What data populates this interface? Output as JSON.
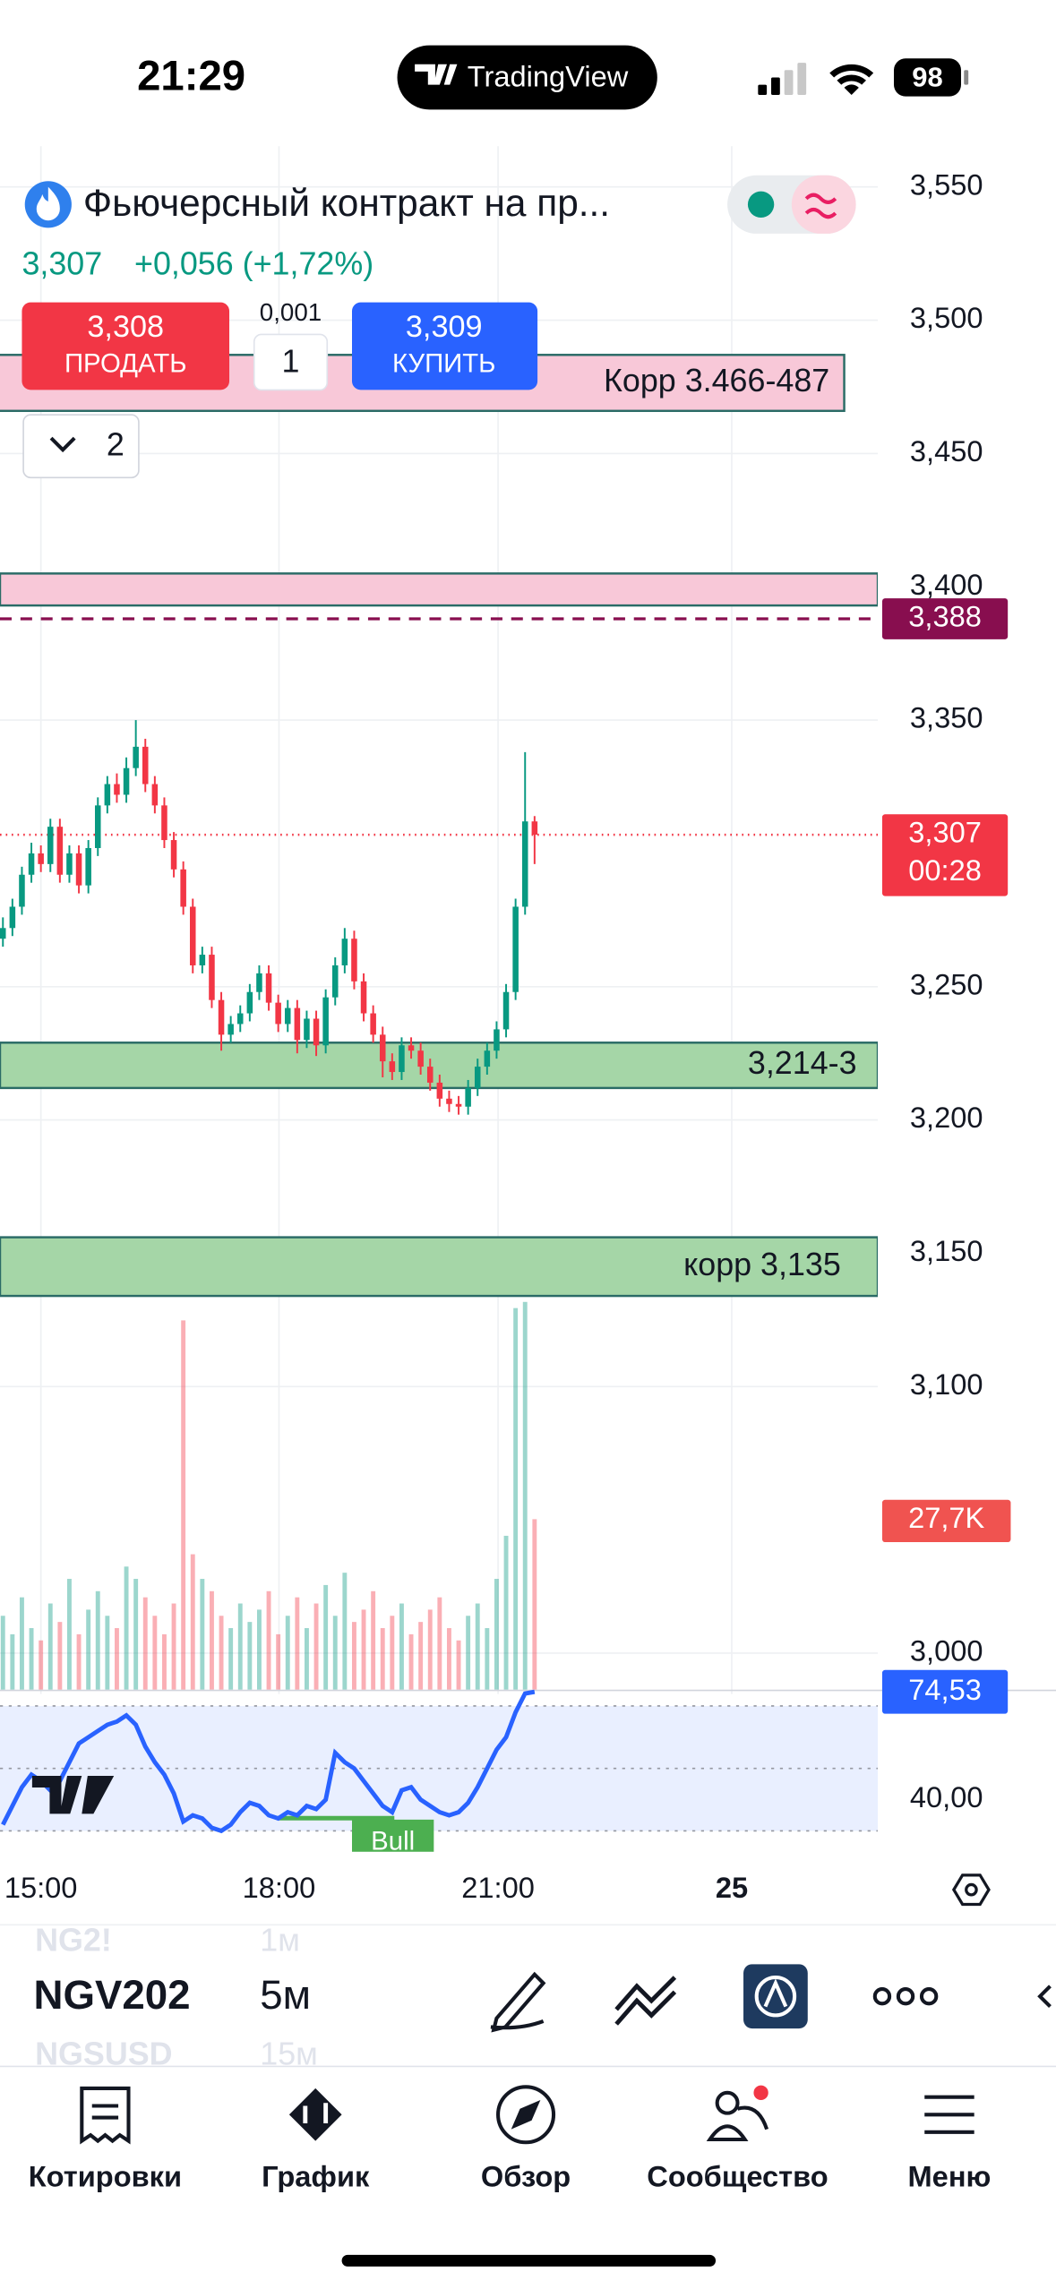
{
  "status_bar": {
    "time": "21:29",
    "app": "TradingView",
    "battery": "98"
  },
  "header": {
    "title": "Фьючерсный контракт на пр...",
    "price": "3,307",
    "change": "+0,056 (+1,72%)"
  },
  "trade": {
    "sell_price": "3,308",
    "sell_label": "ПРОДАТЬ",
    "step": "0,001",
    "quantity": "1",
    "buy_price": "3,309",
    "buy_label": "КУПИТЬ"
  },
  "layers_count": "2",
  "chart": {
    "type": "candlestick",
    "ylim": [
      3.0,
      3.55
    ],
    "yticks": [
      {
        "value": 3.55,
        "label": "3,550"
      },
      {
        "value": 3.5,
        "label": "3,500"
      },
      {
        "value": 3.45,
        "label": "3,450"
      },
      {
        "value": 3.4,
        "label": "3,400"
      },
      {
        "value": 3.35,
        "label": "3,350"
      },
      {
        "value": 3.25,
        "label": "3,250"
      },
      {
        "value": 3.2,
        "label": "3,200"
      },
      {
        "value": 3.15,
        "label": "3,150"
      },
      {
        "value": 3.1,
        "label": "3,100"
      },
      {
        "value": 3.0,
        "label": "3,000"
      }
    ],
    "up_color": "#089981",
    "down_color": "#f23645",
    "candles": [
      [
        3.268,
        3.276,
        3.265,
        3.272
      ],
      [
        3.272,
        3.283,
        3.269,
        3.28
      ],
      [
        3.28,
        3.295,
        3.277,
        3.292
      ],
      [
        3.292,
        3.304,
        3.289,
        3.3
      ],
      [
        3.3,
        3.303,
        3.293,
        3.296
      ],
      [
        3.296,
        3.313,
        3.293,
        3.31
      ],
      [
        3.31,
        3.313,
        3.289,
        3.292
      ],
      [
        3.292,
        3.303,
        3.289,
        3.3
      ],
      [
        3.3,
        3.303,
        3.285,
        3.288
      ],
      [
        3.288,
        3.305,
        3.285,
        3.302
      ],
      [
        3.302,
        3.321,
        3.299,
        3.318
      ],
      [
        3.318,
        3.329,
        3.315,
        3.326
      ],
      [
        3.326,
        3.33,
        3.319,
        3.322
      ],
      [
        3.322,
        3.336,
        3.319,
        3.332
      ],
      [
        3.332,
        3.35,
        3.329,
        3.34
      ],
      [
        3.34,
        3.343,
        3.323,
        3.326
      ],
      [
        3.326,
        3.329,
        3.315,
        3.318
      ],
      [
        3.318,
        3.321,
        3.302,
        3.305
      ],
      [
        3.305,
        3.308,
        3.291,
        3.294
      ],
      [
        3.294,
        3.297,
        3.277,
        3.28
      ],
      [
        3.28,
        3.283,
        3.255,
        3.258
      ],
      [
        3.258,
        3.265,
        3.255,
        3.262
      ],
      [
        3.262,
        3.265,
        3.242,
        3.245
      ],
      [
        3.245,
        3.248,
        3.226,
        3.232
      ],
      [
        3.232,
        3.239,
        3.229,
        3.236
      ],
      [
        3.236,
        3.243,
        3.233,
        3.24
      ],
      [
        3.24,
        3.251,
        3.237,
        3.248
      ],
      [
        3.248,
        3.258,
        3.245,
        3.255
      ],
      [
        3.255,
        3.258,
        3.241,
        3.244
      ],
      [
        3.244,
        3.247,
        3.233,
        3.236
      ],
      [
        3.236,
        3.245,
        3.233,
        3.242
      ],
      [
        3.242,
        3.245,
        3.225,
        3.23
      ],
      [
        3.23,
        3.241,
        3.227,
        3.238
      ],
      [
        3.238,
        3.241,
        3.224,
        3.228
      ],
      [
        3.228,
        3.249,
        3.225,
        3.246
      ],
      [
        3.246,
        3.261,
        3.243,
        3.258
      ],
      [
        3.258,
        3.272,
        3.255,
        3.268
      ],
      [
        3.268,
        3.271,
        3.249,
        3.252
      ],
      [
        3.252,
        3.255,
        3.237,
        3.24
      ],
      [
        3.24,
        3.243,
        3.229,
        3.232
      ],
      [
        3.232,
        3.235,
        3.216,
        3.222
      ],
      [
        3.222,
        3.225,
        3.215,
        3.218
      ],
      [
        3.218,
        3.231,
        3.215,
        3.228
      ],
      [
        3.228,
        3.231,
        3.223,
        3.226
      ],
      [
        3.226,
        3.229,
        3.217,
        3.22
      ],
      [
        3.22,
        3.223,
        3.211,
        3.214
      ],
      [
        3.214,
        3.217,
        3.205,
        3.208
      ],
      [
        3.208,
        3.211,
        3.203,
        3.206
      ],
      [
        3.206,
        3.209,
        3.202,
        3.205
      ],
      [
        3.205,
        3.215,
        3.202,
        3.212
      ],
      [
        3.212,
        3.223,
        3.209,
        3.22
      ],
      [
        3.22,
        3.229,
        3.217,
        3.226
      ],
      [
        3.226,
        3.237,
        3.223,
        3.234
      ],
      [
        3.234,
        3.251,
        3.231,
        3.248
      ],
      [
        3.248,
        3.283,
        3.245,
        3.28
      ],
      [
        3.28,
        3.338,
        3.277,
        3.312
      ],
      [
        3.312,
        3.314,
        3.296,
        3.307
      ]
    ],
    "zones": [
      {
        "from": 3.466,
        "to": 3.487,
        "color": "#f8c8d8",
        "label": "Корр 3.466-487"
      },
      {
        "from": 3.393,
        "to": 3.405,
        "color": "#f8c8d8"
      },
      {
        "from": 3.212,
        "to": 3.229,
        "color": "#a5d6a7",
        "label": "3,214-3"
      },
      {
        "from": 3.134,
        "to": 3.156,
        "color": "#a5d6a7",
        "label": "корр 3,135"
      }
    ],
    "alert_line": {
      "value": 3.388,
      "label": "3,388",
      "color": "#880e4f"
    },
    "last_price": {
      "value": 3.307,
      "label": "3,307",
      "countdown": "00:28"
    },
    "volume": {
      "ylim": [
        0,
        70
      ],
      "values": [
        12,
        9,
        15,
        10,
        8,
        14,
        11,
        18,
        9,
        13,
        16,
        12,
        10,
        20,
        18,
        15,
        12,
        9,
        14,
        60,
        22,
        18,
        16,
        12,
        10,
        14,
        11,
        13,
        16,
        9,
        12,
        15,
        10,
        14,
        17,
        12,
        19,
        11,
        13,
        16,
        10,
        12,
        14,
        9,
        11,
        13,
        15,
        10,
        8,
        12,
        14,
        10,
        18,
        25,
        62,
        63,
        27.7
      ],
      "value_labels": [
        null,
        null,
        null,
        null,
        null,
        null,
        null,
        null,
        null,
        null,
        null,
        null,
        null,
        null,
        null,
        null,
        null,
        null,
        null,
        null,
        null,
        null,
        null,
        null,
        null,
        null,
        null,
        null,
        null,
        null,
        null,
        null,
        null,
        null,
        null,
        null,
        null,
        null,
        null,
        null,
        null,
        null,
        null,
        null,
        null,
        null,
        null,
        null,
        null,
        null,
        null,
        null,
        null,
        null,
        null,
        null,
        "27,7K"
      ]
    },
    "rsi": {
      "ylim": [
        28,
        75
      ],
      "yticks": [
        {
          "value": 40,
          "label": "40,00"
        }
      ],
      "levels": [
        30,
        50,
        70
      ],
      "color": "#2962ff",
      "values": [
        32,
        38,
        44,
        48,
        46,
        43,
        46,
        52,
        58,
        60,
        62,
        64,
        65,
        67,
        64,
        57,
        52,
        48,
        42,
        33,
        35,
        34,
        31,
        30,
        32,
        36,
        39,
        38,
        35,
        34,
        36,
        35,
        38,
        37,
        40,
        55,
        52,
        50,
        46,
        42,
        38,
        36,
        43,
        44,
        40,
        38,
        36,
        35,
        36,
        39,
        44,
        50,
        56,
        60,
        68,
        74,
        74.53
      ],
      "value_labels": [
        null,
        null,
        null,
        null,
        null,
        null,
        null,
        null,
        null,
        null,
        null,
        null,
        null,
        null,
        null,
        null,
        null,
        null,
        null,
        null,
        null,
        null,
        null,
        null,
        null,
        null,
        null,
        null,
        null,
        null,
        null,
        null,
        null,
        null,
        null,
        null,
        null,
        null,
        null,
        null,
        null,
        null,
        null,
        null,
        null,
        null,
        null,
        null,
        null,
        null,
        null,
        null,
        null,
        null,
        null,
        null,
        "74,53"
      ],
      "divergence_label": "Bull"
    },
    "time_labels": [
      "15:00",
      "18:00",
      "21:00",
      "25"
    ]
  },
  "toolbar": {
    "symbol": "NGV202",
    "interval": "5м",
    "prev_symbol": "NG2!",
    "prev_interval": "1м",
    "next_symbol": "NGSUSD",
    "next_interval": "15м"
  },
  "tabs": [
    "Котировки",
    "График",
    "Обзор",
    "Сообщество",
    "Меню"
  ]
}
